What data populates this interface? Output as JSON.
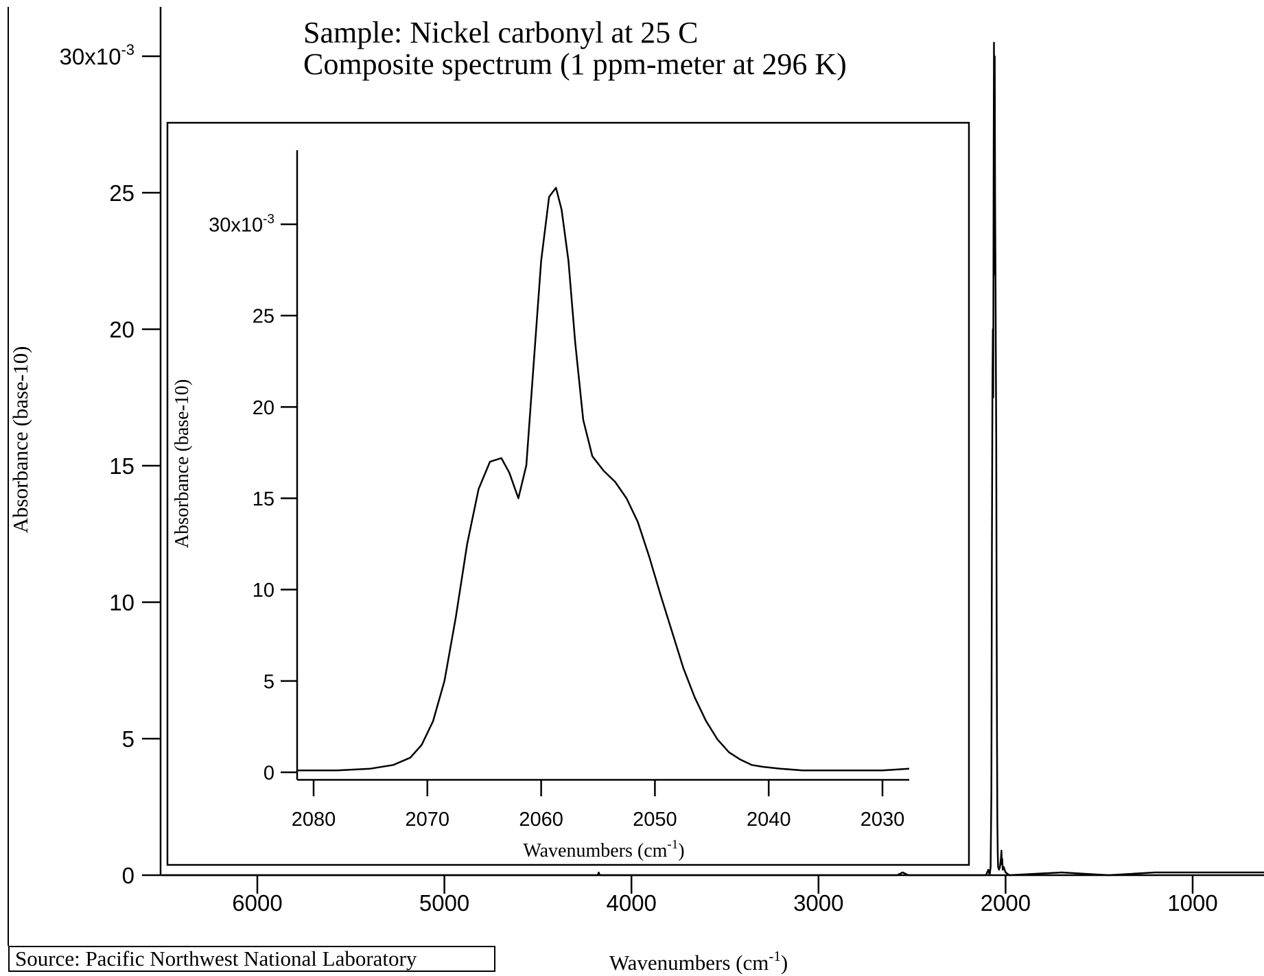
{
  "chart_data": [
    {
      "type": "line",
      "role": "main",
      "title": "Sample: Nickel carbonyl at 25 C",
      "subtitle": "Composite spectrum (1 ppm-meter at 296 K)",
      "xlabel": "Wavenumbers (cm",
      "xlabel_sup": "-1",
      "xlabel_tail": ")",
      "ylabel": "Absorbance (base-10)",
      "x_reversed": true,
      "xlim": [
        6510,
        600
      ],
      "ylim": [
        -0.0005,
        0.0325
      ],
      "x_ticks": [
        6000,
        5000,
        4000,
        3000,
        2000,
        1000
      ],
      "y_ticks": [
        {
          "value": 0,
          "label": "0"
        },
        {
          "value": 0.005,
          "label": "5"
        },
        {
          "value": 0.01,
          "label": "10"
        },
        {
          "value": 0.015,
          "label": "15"
        },
        {
          "value": 0.02,
          "label": "20"
        },
        {
          "value": 0.025,
          "label": "25"
        },
        {
          "value": 0.03,
          "label": "30x10",
          "exp": "-3"
        }
      ],
      "grid": false,
      "series": [
        {
          "x": [
            6510,
            4500,
            4180,
            4175,
            4170,
            4100,
            3500,
            2580,
            2550,
            2520,
            2200,
            2160,
            2140,
            2120,
            2105,
            2092,
            2085,
            2080,
            2076,
            2073,
            2070,
            2068,
            2066,
            2064,
            2062,
            2060,
            2058,
            2056,
            2054,
            2052,
            2050,
            2048,
            2046,
            2044,
            2042,
            2040,
            2035,
            2030,
            2025,
            2022,
            2020,
            2018,
            2015,
            2010,
            2005,
            2000,
            1980,
            1700,
            1450,
            1200,
            800,
            600
          ],
          "y": [
            0.0,
            0.0,
            0.0,
            0.0001,
            0.0,
            0.0,
            0.0,
            0.0,
            0.0001,
            0.0,
            0.0,
            -0.0001,
            0.0,
            -0.0001,
            0.0,
            0.0002,
            0.0,
            0.0003,
            0.003,
            0.012,
            0.018,
            0.02,
            0.0175,
            0.026,
            0.0305,
            0.022,
            0.03,
            0.025,
            0.022,
            0.019,
            0.016,
            0.01,
            0.005,
            0.002,
            0.0008,
            0.0003,
            0.0002,
            0.0003,
            0.0006,
            0.0009,
            0.0004,
            0.0006,
            0.0002,
            0.0003,
            0.0002,
            0.0001,
            0.0,
            0.0001,
            0.0,
            0.0001,
            0.0001,
            0.0001
          ]
        }
      ],
      "source": "Source: Pacific Northwest National Laboratory"
    },
    {
      "type": "line",
      "role": "inset",
      "xlabel": "Wavenumbers (cm",
      "xlabel_sup": "-1",
      "xlabel_tail": ")",
      "ylabel": "Absorbance (base-10)",
      "x_reversed": true,
      "xlim": [
        2081.5,
        2027.5
      ],
      "ylim": [
        -0.0005,
        0.032
      ],
      "x_ticks": [
        2080,
        2070,
        2060,
        2050,
        2040,
        2030
      ],
      "y_ticks": [
        {
          "value": 0,
          "label": "0"
        },
        {
          "value": 0.005,
          "label": "5"
        },
        {
          "value": 0.01,
          "label": "10"
        },
        {
          "value": 0.015,
          "label": "15"
        },
        {
          "value": 0.02,
          "label": "20"
        },
        {
          "value": 0.025,
          "label": "25"
        },
        {
          "value": 0.03,
          "label": "30x10",
          "exp": "-3"
        }
      ],
      "grid": false,
      "series": [
        {
          "x": [
            2081.5,
            2078,
            2075,
            2073,
            2071.5,
            2070.5,
            2069.5,
            2068.5,
            2067.5,
            2066.5,
            2065.5,
            2064.5,
            2063.5,
            2062.8,
            2062,
            2061.3,
            2060.7,
            2060,
            2059.3,
            2058.7,
            2058.2,
            2057.6,
            2057,
            2056.3,
            2055.5,
            2054.5,
            2053.5,
            2052.5,
            2051.5,
            2050.5,
            2049.5,
            2048.5,
            2047.5,
            2046.5,
            2045.5,
            2044.5,
            2043.5,
            2042.5,
            2041.5,
            2040.5,
            2039,
            2037,
            2035,
            2032,
            2030,
            2027.5
          ],
          "y": [
            0.0001,
            0.0001,
            0.0002,
            0.0004,
            0.0008,
            0.0015,
            0.0028,
            0.005,
            0.0085,
            0.0125,
            0.0155,
            0.017,
            0.0172,
            0.0164,
            0.015,
            0.0168,
            0.022,
            0.028,
            0.0315,
            0.032,
            0.0308,
            0.028,
            0.0235,
            0.0193,
            0.0173,
            0.0165,
            0.0159,
            0.015,
            0.0137,
            0.0118,
            0.0097,
            0.0077,
            0.0057,
            0.0041,
            0.0028,
            0.0018,
            0.0011,
            0.0007,
            0.0004,
            0.0003,
            0.0002,
            0.0001,
            0.0001,
            0.0001,
            0.0001,
            0.0002
          ]
        }
      ]
    }
  ]
}
